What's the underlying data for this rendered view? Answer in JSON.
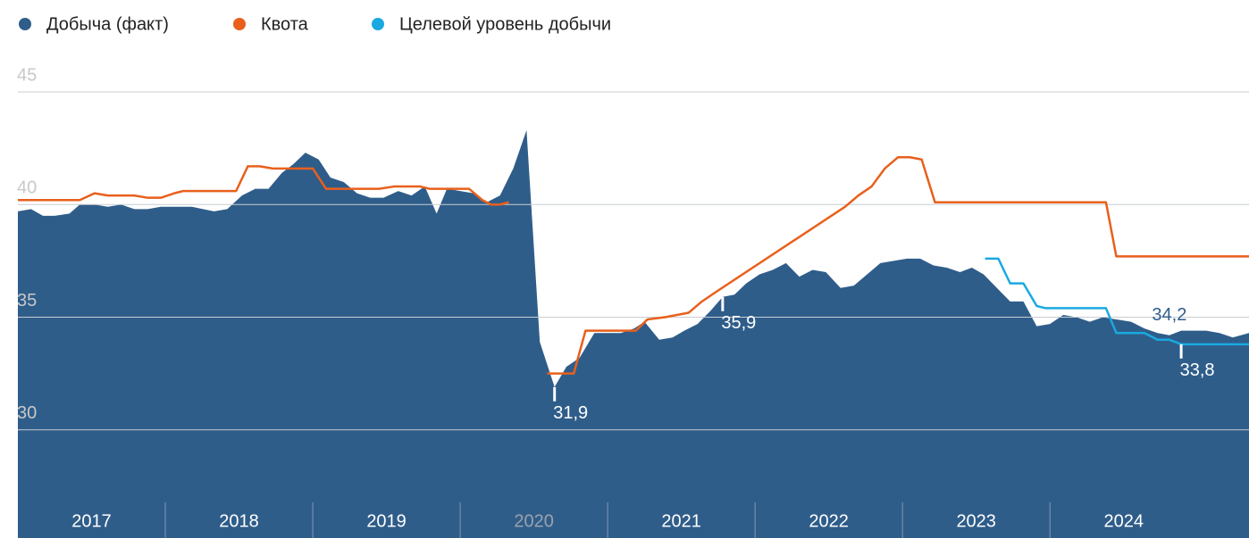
{
  "chart_data": {
    "type": "area-line",
    "legend": "top-left",
    "grid": true,
    "xlim": [
      2017,
      2025.35
    ],
    "ylim": [
      25.2,
      45
    ],
    "yticks": [
      30,
      35,
      40,
      45
    ],
    "xticks": [
      {
        "value": 2017,
        "label": "2017"
      },
      {
        "value": 2018,
        "label": "2018"
      },
      {
        "value": 2019,
        "label": "2019"
      },
      {
        "value": 2020,
        "label": "2020",
        "color": "#9aa3ad"
      },
      {
        "value": 2021,
        "label": "2021"
      },
      {
        "value": 2022,
        "label": "2022"
      },
      {
        "value": 2023,
        "label": "2023"
      },
      {
        "value": 2024,
        "label": "2024"
      }
    ],
    "series": [
      {
        "name": "Добыча (факт)",
        "color": "#2f5d8a",
        "kind": "area",
        "x": [
          2017,
          2017.09,
          2017.17,
          2017.25,
          2017.35,
          2017.42,
          2017.52,
          2017.61,
          2017.7,
          2017.79,
          2017.88,
          2017.97,
          2018.09,
          2018.18,
          2018.33,
          2018.42,
          2018.52,
          2018.61,
          2018.7,
          2018.79,
          2018.87,
          2018.95,
          2019.04,
          2019.12,
          2019.21,
          2019.3,
          2019.39,
          2019.48,
          2019.58,
          2019.67,
          2019.76,
          2019.84,
          2019.91,
          2020,
          2020.09,
          2020.18,
          2020.27,
          2020.36,
          2020.45,
          2020.54,
          2020.64,
          2020.72,
          2020.81,
          2020.91,
          2021,
          2021.09,
          2021.18,
          2021.25,
          2021.35,
          2021.44,
          2021.52,
          2021.61,
          2021.7,
          2021.78,
          2021.86,
          2021.94,
          2022.03,
          2022.12,
          2022.21,
          2022.3,
          2022.39,
          2022.48,
          2022.58,
          2022.67,
          2022.76,
          2022.85,
          2022.94,
          2023.03,
          2023.12,
          2023.21,
          2023.3,
          2023.39,
          2023.47,
          2023.55,
          2023.64,
          2023.73,
          2023.82,
          2023.91,
          2024,
          2024.09,
          2024.18,
          2024.27,
          2024.36,
          2024.45,
          2024.55,
          2024.64,
          2024.73,
          2024.81,
          2024.89,
          2024.98,
          2025.06,
          2025.15,
          2025.24,
          2025.35
        ],
        "values": [
          39.7,
          39.8,
          39.5,
          39.5,
          39.6,
          40.0,
          40.0,
          39.9,
          40.0,
          39.8,
          39.8,
          39.9,
          39.9,
          39.9,
          39.7,
          39.8,
          40.4,
          40.7,
          40.7,
          41.4,
          41.8,
          42.3,
          42.0,
          41.2,
          41.0,
          40.5,
          40.3,
          40.3,
          40.6,
          40.4,
          40.8,
          39.6,
          40.7,
          40.6,
          40.5,
          40.1,
          40.4,
          41.6,
          43.3,
          33.9,
          31.9,
          32.8,
          33.2,
          34.3,
          34.3,
          34.3,
          34.5,
          34.8,
          34.0,
          34.1,
          34.4,
          34.7,
          35.3,
          35.9,
          36.0,
          36.5,
          36.9,
          37.1,
          37.4,
          36.8,
          37.1,
          37.0,
          36.3,
          36.4,
          36.9,
          37.4,
          37.5,
          37.6,
          37.6,
          37.3,
          37.2,
          37.0,
          37.2,
          36.9,
          36.3,
          35.7,
          35.7,
          34.6,
          34.7,
          35.1,
          35.0,
          34.8,
          35.0,
          34.9,
          34.8,
          34.5,
          34.3,
          34.2,
          34.4,
          34.4,
          34.4,
          34.3,
          34.1,
          34.3
        ]
      },
      {
        "name": "Квота",
        "color": "#e8601c",
        "kind": "line",
        "x": [
          2017,
          2017.42,
          2017.52,
          2017.61,
          2017.79,
          2017.88,
          2017.97,
          2018.06,
          2018.12,
          2018.48,
          2018.56,
          2018.64,
          2018.73,
          2019,
          2019.09,
          2019.45,
          2019.55,
          2019.73,
          2019.79,
          2020.06,
          2020.15,
          2020.21,
          2020.27,
          2020.33,
          2020.45,
          2020.59,
          2020.77,
          2020.85,
          2021.19,
          2021.27,
          2021.39,
          2021.55,
          2021.64,
          2021.73,
          2022.61,
          2022.7,
          2022.79,
          2022.88,
          2022.97,
          2023.05,
          2023.13,
          2023.22,
          2024.38,
          2024.45,
          2025.35
        ],
        "values": [
          40.2,
          40.2,
          40.5,
          40.4,
          40.4,
          40.3,
          40.3,
          40.5,
          40.6,
          40.6,
          41.7,
          41.7,
          41.6,
          41.6,
          40.7,
          40.7,
          40.8,
          40.8,
          40.7,
          40.7,
          40.2,
          40.0,
          40.0,
          40.1,
          null,
          32.5,
          32.5,
          34.4,
          34.4,
          34.9,
          35.0,
          35.2,
          35.7,
          36.1,
          39.9,
          40.4,
          40.8,
          41.6,
          42.1,
          42.1,
          42.0,
          40.1,
          40.1,
          37.7,
          37.7
        ]
      },
      {
        "name": "Целевой уровень добычи",
        "color": "#1aa9e0",
        "kind": "line",
        "x": [
          2023.56,
          2023.65,
          2023.73,
          2023.82,
          2023.91,
          2023.97,
          2024.38,
          2024.45,
          2024.64,
          2024.73,
          2024.81,
          2024.89,
          2025.35
        ],
        "values": [
          37.6,
          37.6,
          36.5,
          36.5,
          35.5,
          35.4,
          35.4,
          34.3,
          34.3,
          34.0,
          34.0,
          33.8,
          33.8
        ]
      }
    ],
    "annotations": [
      {
        "x": 2020.64,
        "value": 31.9,
        "label": "31,9",
        "placement": "below",
        "color": "#ffffff"
      },
      {
        "x": 2021.78,
        "value": 35.9,
        "label": "35,9",
        "placement": "below",
        "color": "#ffffff"
      },
      {
        "x": 2024.81,
        "value": 34.2,
        "label": "34,2",
        "placement": "above",
        "color": "#2f5d8a"
      },
      {
        "x": 2024.89,
        "value": 33.8,
        "label": "33,8",
        "placement": "below",
        "color": "#ffffff"
      }
    ]
  }
}
